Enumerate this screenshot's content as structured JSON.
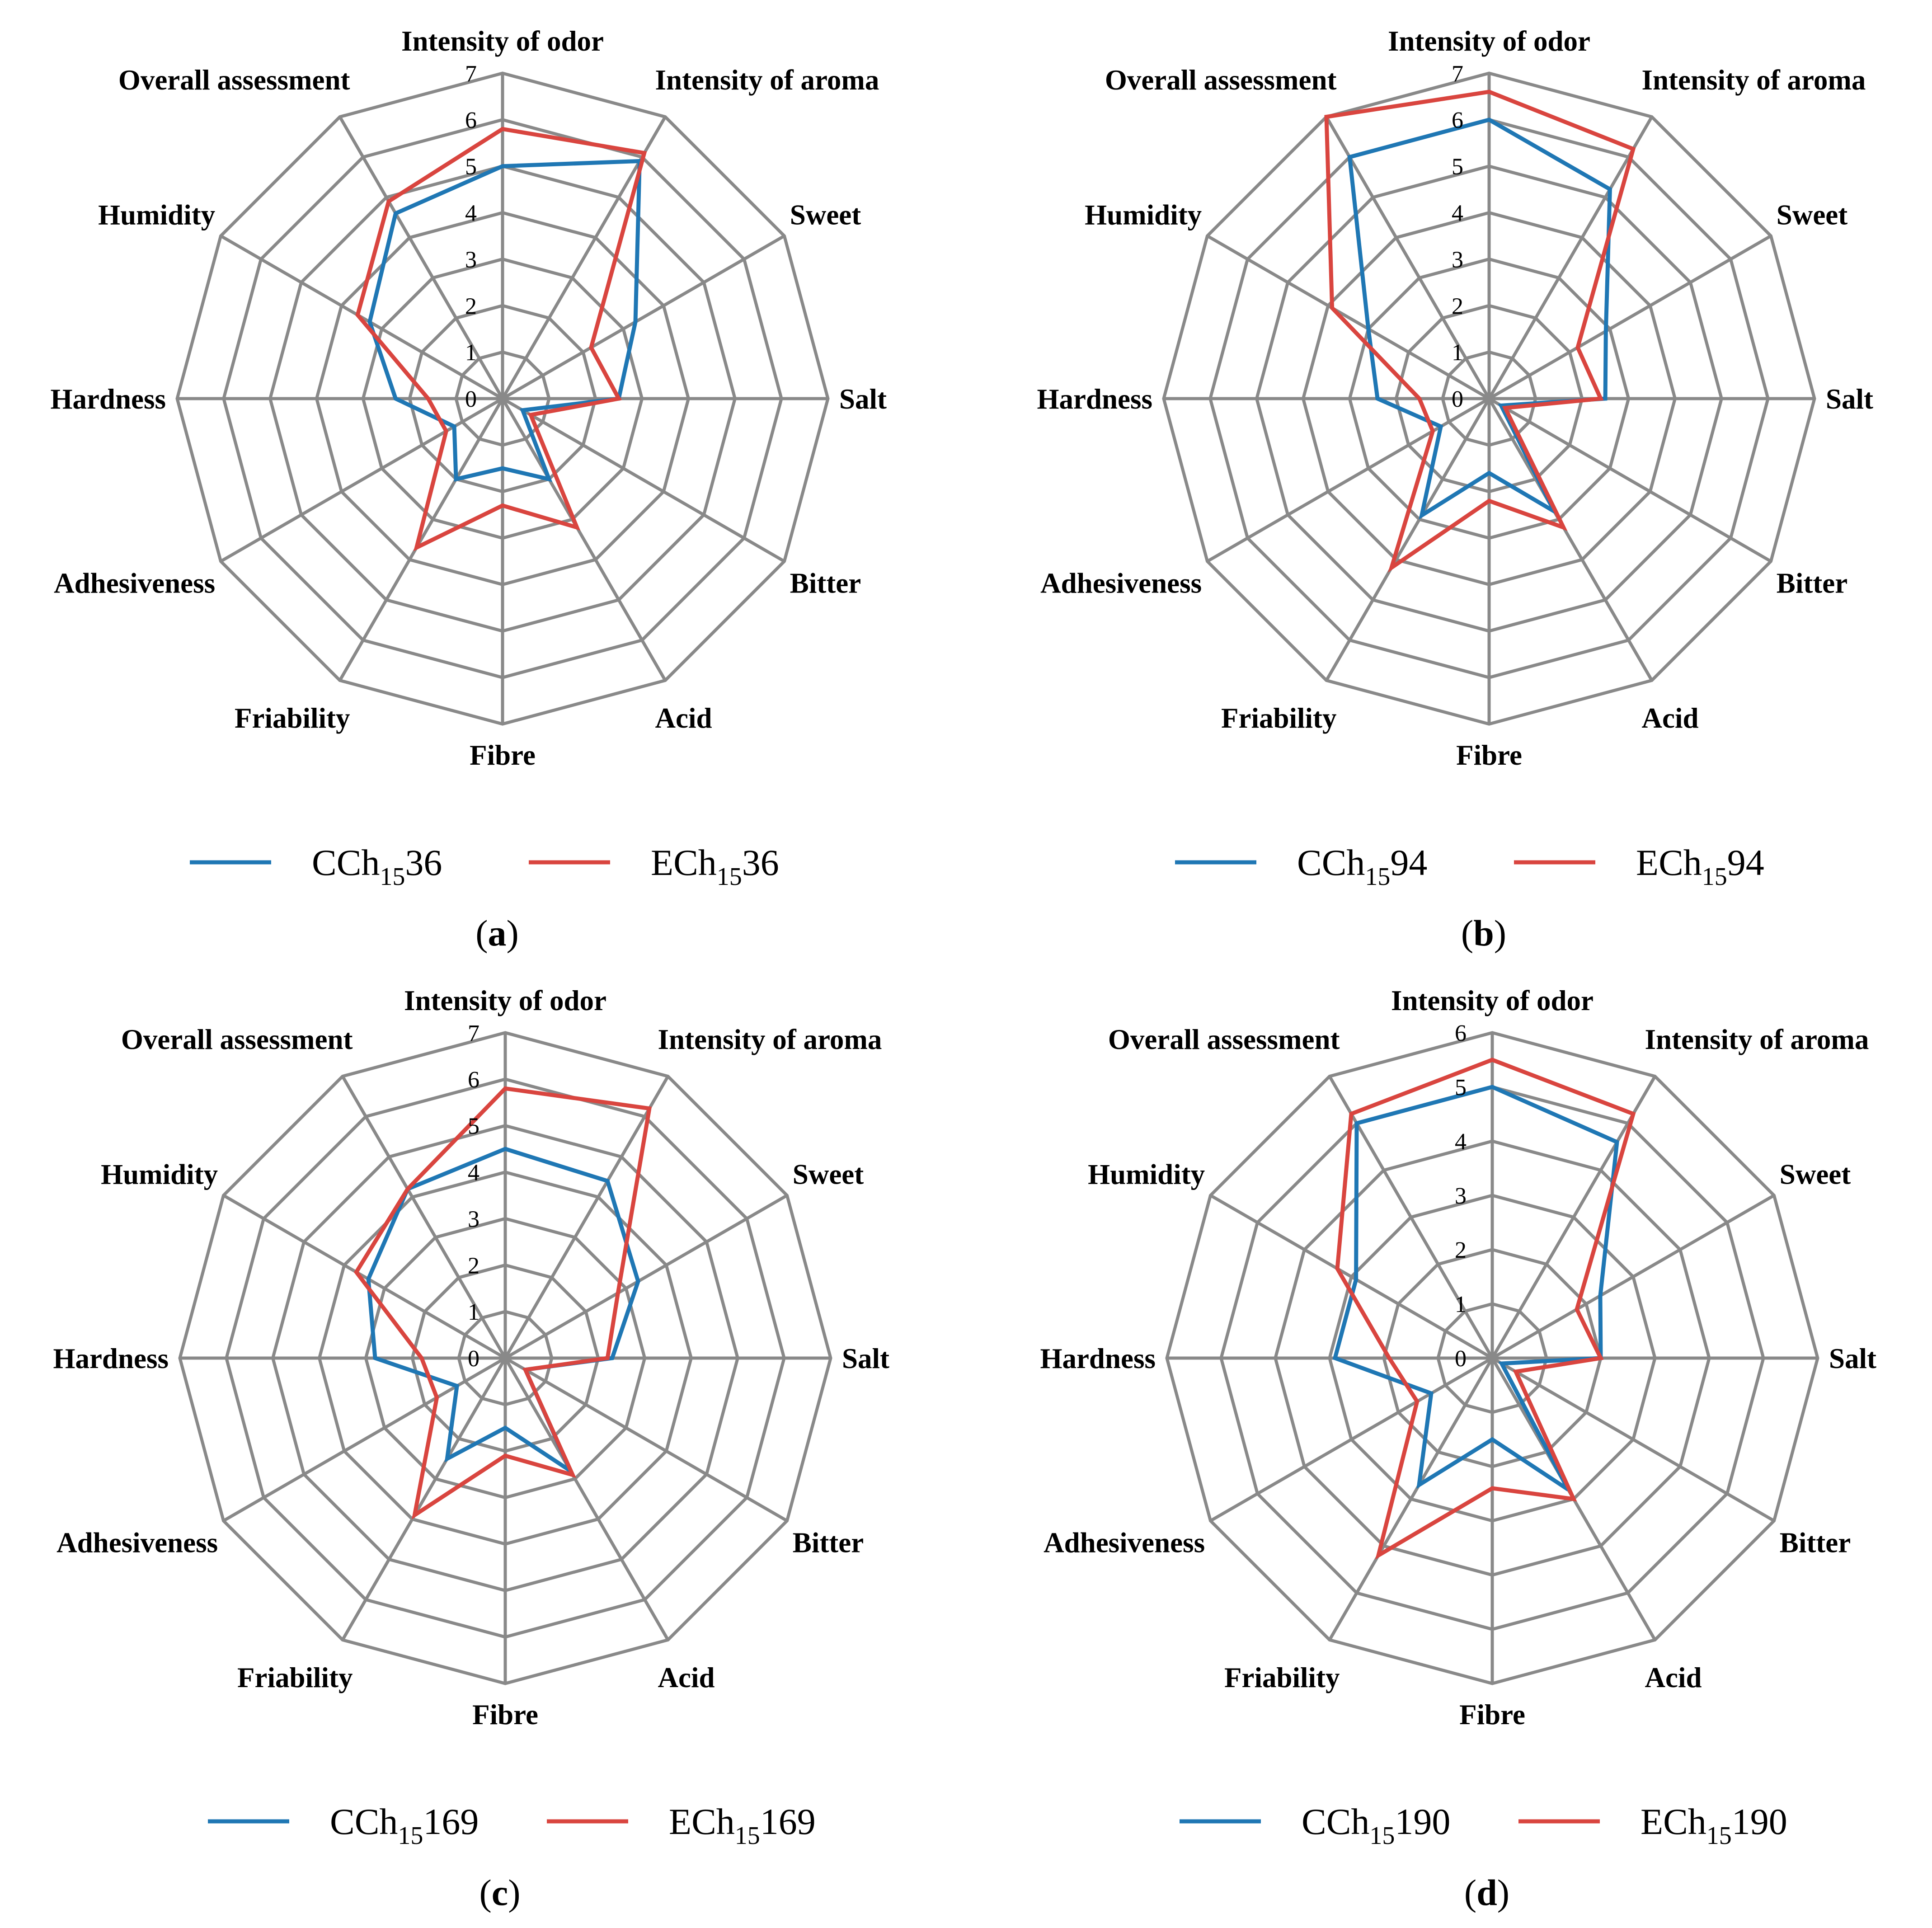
{
  "colors": {
    "ctrl": "#1f77b4",
    "exp": "#d9453f",
    "grid": "#898989"
  },
  "chart_data": [
    {
      "type": "radar",
      "caption": "(a)",
      "caption_letter": "a",
      "rmax": 7,
      "ticks": [
        "0",
        "1",
        "2",
        "3",
        "4",
        "5",
        "6",
        "7"
      ],
      "axes": [
        "Intensity of odor",
        "Intensity of aroma",
        "Sweet",
        "Salt",
        "Bitter",
        "Acid",
        "Fibre",
        "Friability",
        "Adhesiveness",
        "Hardness",
        "Humidity",
        "Overall assessment"
      ],
      "series": [
        {
          "name": "CCh15 36",
          "prefix": "CCh",
          "sub": "15",
          "suffix": "36",
          "color_key": "ctrl",
          "values": [
            5.0,
            5.9,
            3.3,
            2.5,
            0.5,
            2.0,
            1.5,
            2.0,
            1.2,
            2.3,
            3.3,
            4.6
          ]
        },
        {
          "name": "ECh15 36",
          "prefix": "ECh",
          "sub": "15",
          "suffix": "36",
          "color_key": "exp",
          "values": [
            5.8,
            6.1,
            2.2,
            2.5,
            0.7,
            3.2,
            2.3,
            3.7,
            1.4,
            1.6,
            3.6,
            4.9
          ]
        }
      ]
    },
    {
      "type": "radar",
      "caption": "(b)",
      "caption_letter": "b",
      "rmax": 7,
      "ticks": [
        "0",
        "1",
        "2",
        "3",
        "4",
        "5",
        "6",
        "7"
      ],
      "axes": [
        "Intensity of odor",
        "Intensity of aroma",
        "Sweet",
        "Salt",
        "Bitter",
        "Acid",
        "Fibre",
        "Friability",
        "Adhesiveness",
        "Hardness",
        "Humidity",
        "Overall assessment"
      ],
      "series": [
        {
          "name": "CCh15 94",
          "prefix": "CCh",
          "sub": "15",
          "suffix": "94",
          "color_key": "ctrl",
          "values": [
            6.0,
            5.2,
            2.9,
            2.5,
            0.3,
            2.8,
            1.6,
            2.9,
            1.2,
            2.4,
            3.0,
            6.0
          ]
        },
        {
          "name": "ECh15 94",
          "prefix": "ECh",
          "sub": "15",
          "suffix": "94",
          "color_key": "exp",
          "values": [
            6.6,
            6.2,
            2.2,
            2.4,
            0.4,
            3.2,
            2.2,
            4.2,
            1.4,
            1.5,
            3.9,
            7.0
          ]
        }
      ]
    },
    {
      "type": "radar",
      "caption": "(c)",
      "caption_letter": "c",
      "rmax": 7,
      "ticks": [
        "0",
        "1",
        "2",
        "3",
        "4",
        "5",
        "6",
        "7"
      ],
      "axes": [
        "Intensity of odor",
        "Intensity of aroma",
        "Sweet",
        "Salt",
        "Bitter",
        "Acid",
        "Fibre",
        "Friability",
        "Adhesiveness",
        "Hardness",
        "Humidity",
        "Overall assessment"
      ],
      "series": [
        {
          "name": "CCh15 169",
          "prefix": "CCh",
          "sub": "15",
          "suffix": "169",
          "color_key": "ctrl",
          "values": [
            4.5,
            4.4,
            3.3,
            2.3,
            0.5,
            2.8,
            1.5,
            2.5,
            1.2,
            2.8,
            3.4,
            4.2
          ]
        },
        {
          "name": "ECh15 169",
          "prefix": "ECh",
          "sub": "15",
          "suffix": "169",
          "color_key": "exp",
          "values": [
            5.8,
            6.2,
            2.8,
            2.2,
            0.5,
            2.9,
            2.1,
            3.9,
            1.7,
            1.8,
            3.7,
            4.2
          ]
        }
      ]
    },
    {
      "type": "radar",
      "caption": "(d)",
      "caption_letter": "d",
      "rmax": 6,
      "ticks": [
        "0",
        "1",
        "2",
        "3",
        "4",
        "5",
        "6"
      ],
      "axes": [
        "Intensity of odor",
        "Intensity of aroma",
        "Sweet",
        "Salt",
        "Bitter",
        "Acid",
        "Fibre",
        "Friability",
        "Adhesiveness",
        "Hardness",
        "Humidity",
        "Overall assessment"
      ],
      "series": [
        {
          "name": "CCh15 190",
          "prefix": "CCh",
          "sub": "15",
          "suffix": "190",
          "color_key": "ctrl",
          "values": [
            5.0,
            4.6,
            2.3,
            2.0,
            0.2,
            2.8,
            1.5,
            2.7,
            1.3,
            2.9,
            2.9,
            5.0
          ]
        },
        {
          "name": "ECh15 190",
          "prefix": "ECh",
          "sub": "15",
          "suffix": "190",
          "color_key": "exp",
          "values": [
            5.5,
            5.2,
            1.8,
            2.0,
            0.5,
            3.0,
            2.4,
            4.2,
            1.6,
            1.9,
            3.3,
            5.2
          ]
        }
      ]
    }
  ]
}
